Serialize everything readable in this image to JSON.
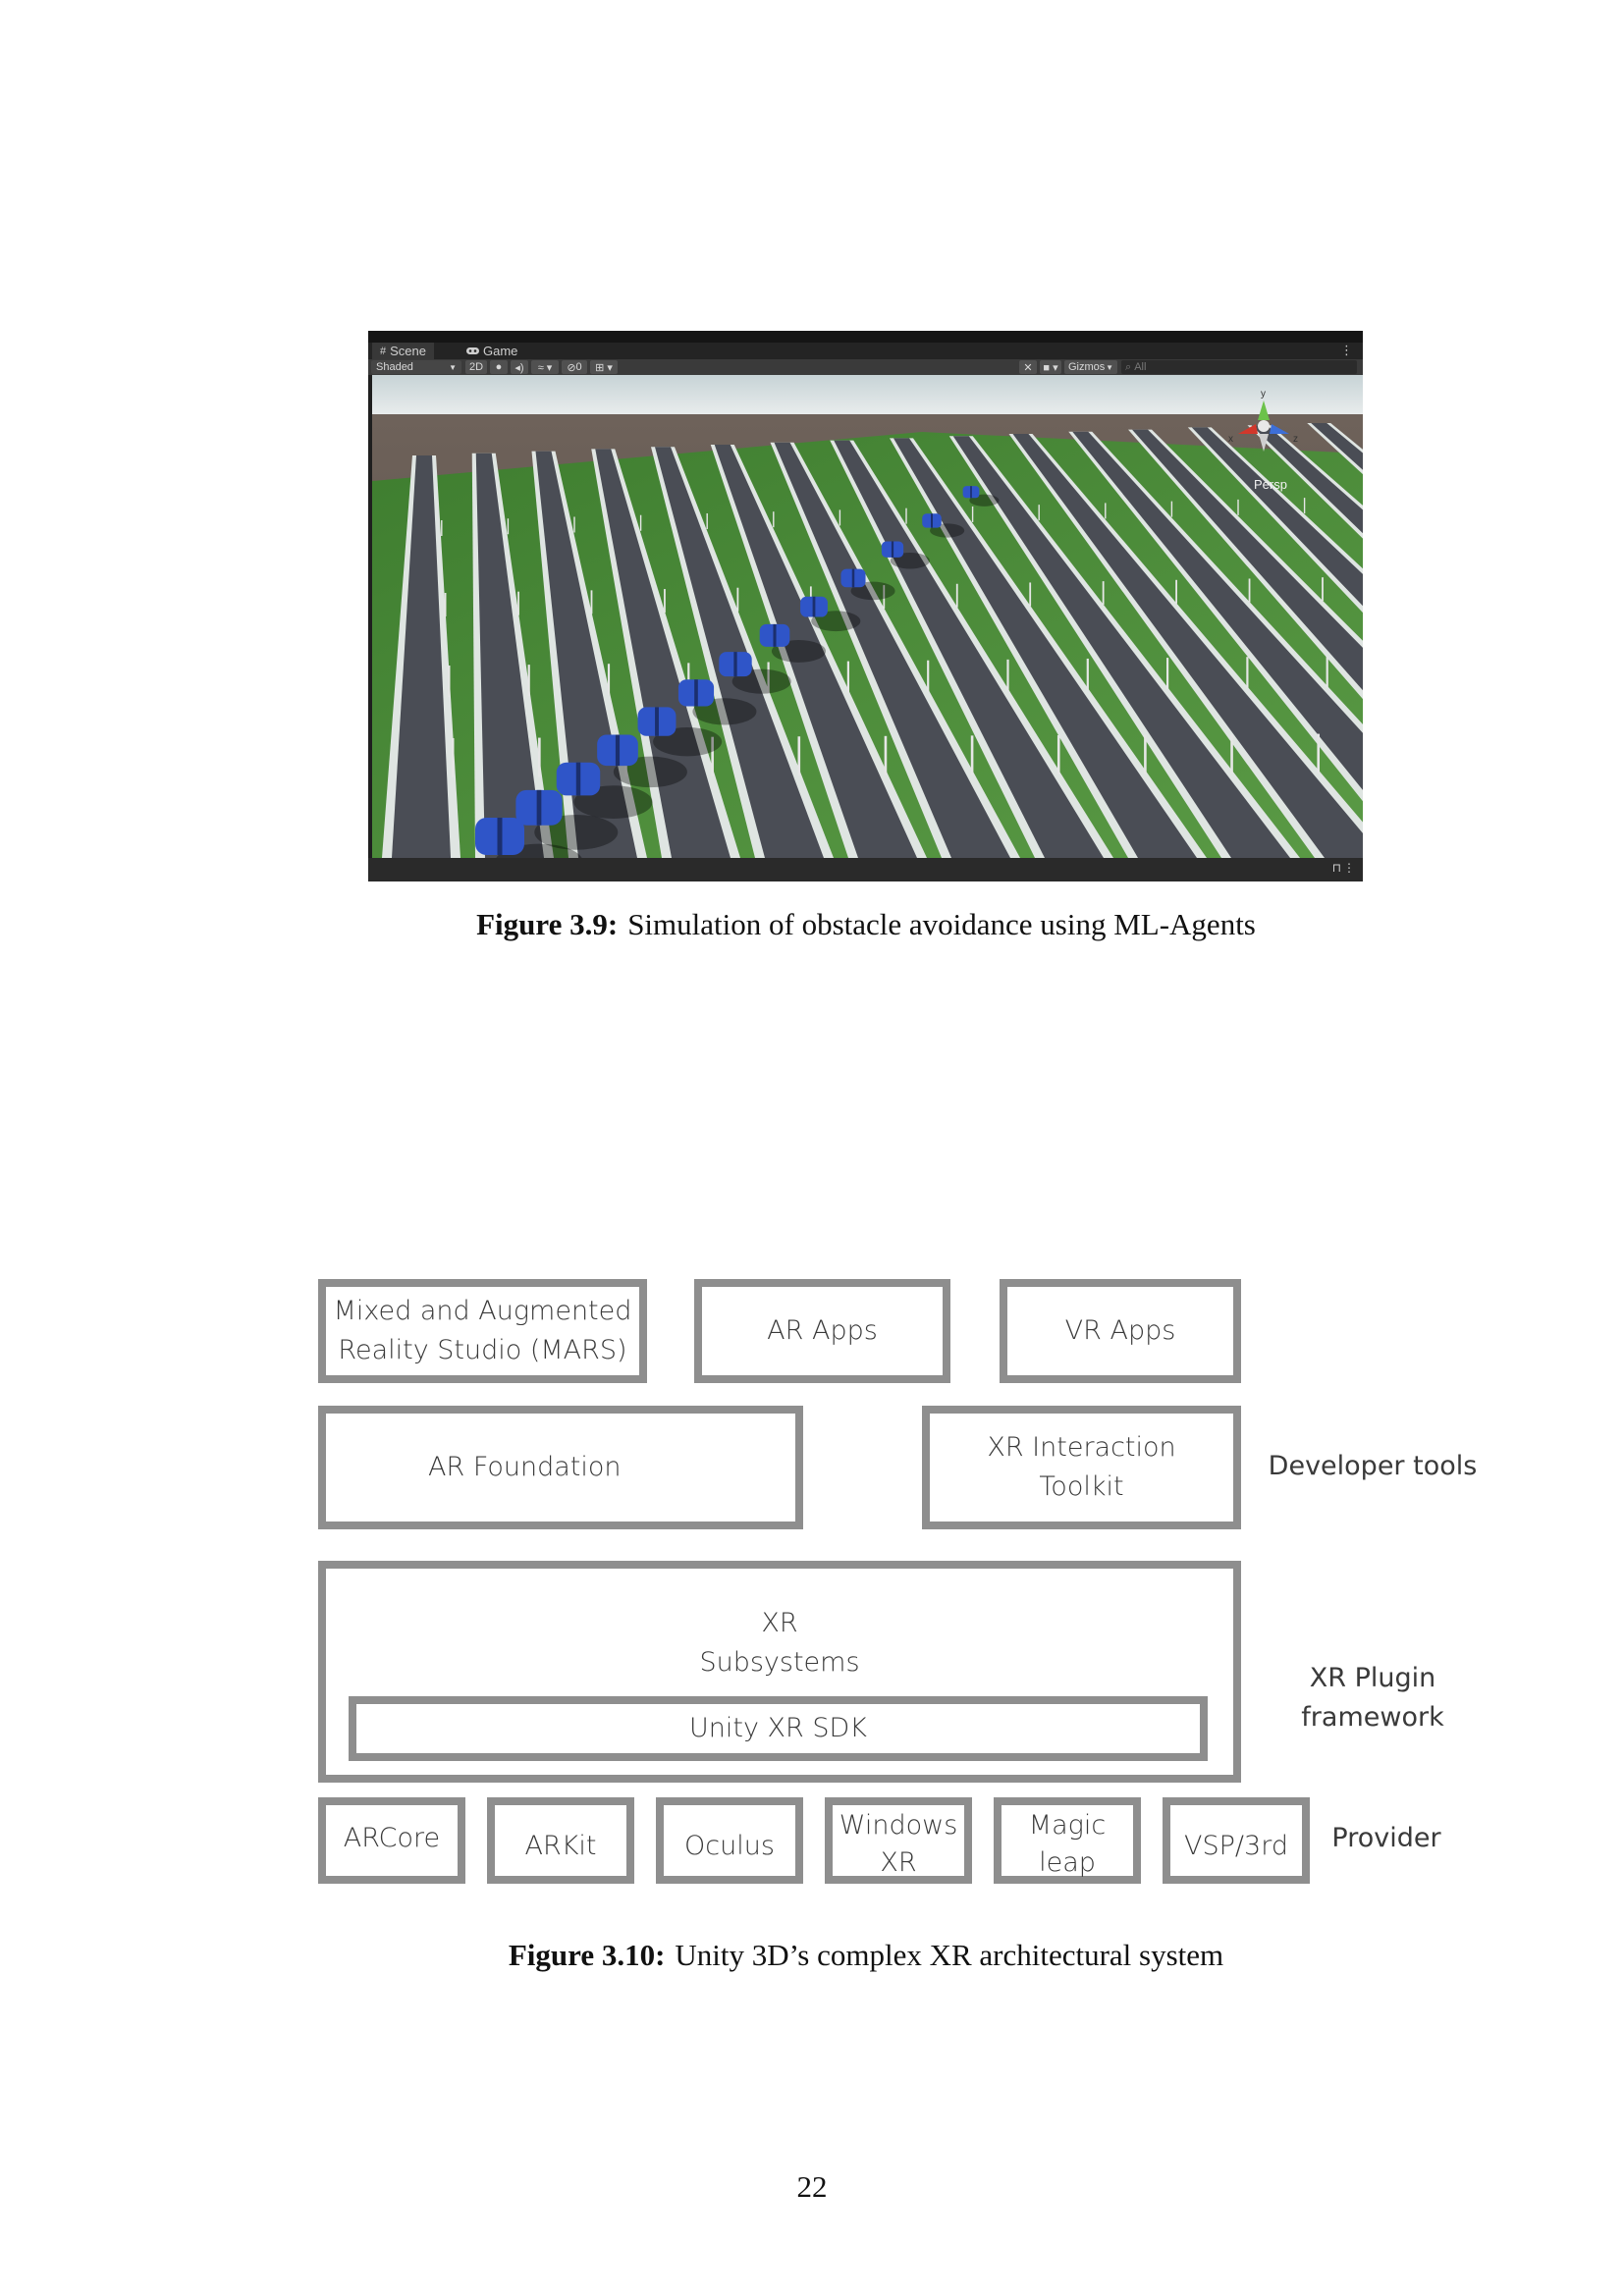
{
  "figure_1": {
    "editor": {
      "tabs": [
        {
          "label": "Scene",
          "icon": "grid-icon"
        },
        {
          "label": "Game",
          "icon": "gamepad-icon"
        }
      ],
      "toolbar": {
        "shading_mode": "Shaded",
        "view_2d": "2D",
        "hidden_count": "0",
        "gizmos_label": "Gizmos",
        "search_placeholder": "All"
      },
      "scene": {
        "projection_label": "Persp",
        "axis_x": "x",
        "axis_y": "y",
        "axis_z": "z"
      }
    },
    "caption_label": "Figure 3.9:",
    "caption_text": "Simulation of obstacle avoidance using ML-Agents"
  },
  "figure_2": {
    "boxes": {
      "mars": "Mixed and Augmented\nReality Studio (MARS)",
      "ar_apps": "AR Apps",
      "vr_apps": "VR Apps",
      "ar_foundation": "AR Foundation",
      "xr_interaction_toolkit": "XR Interaction\nToolkit",
      "xr_subsystems": "XR\nSubsystems",
      "unity_xr_sdk": "Unity XR SDK",
      "providers": [
        {
          "key": "arcore",
          "label": "ARCore"
        },
        {
          "key": "arkit",
          "label": "ARKit"
        },
        {
          "key": "oculus",
          "label": "Oculus"
        },
        {
          "key": "windows_xr",
          "label": "Windows\nXR"
        },
        {
          "key": "magic_leap",
          "label": "Magic\nleap"
        },
        {
          "key": "vsp",
          "label": "VSP/3rd"
        }
      ]
    },
    "side_labels": {
      "developer_tools": "Developer tools",
      "xr_plugin_framework": "XR Plugin\nframework",
      "provider": "Provider"
    },
    "caption_label": "Figure 3.10:",
    "caption_text": "Unity 3D’s complex XR architectural system"
  },
  "page_number": "22",
  "colors": {
    "box_border": "#8e8e8e",
    "diagram_text": "#3a3a3a",
    "car_blue": "#2f55c8",
    "grass_green": "#4f8a3a",
    "road_gray": "#4a4d55",
    "editor_dark": "#1f1f1f"
  }
}
